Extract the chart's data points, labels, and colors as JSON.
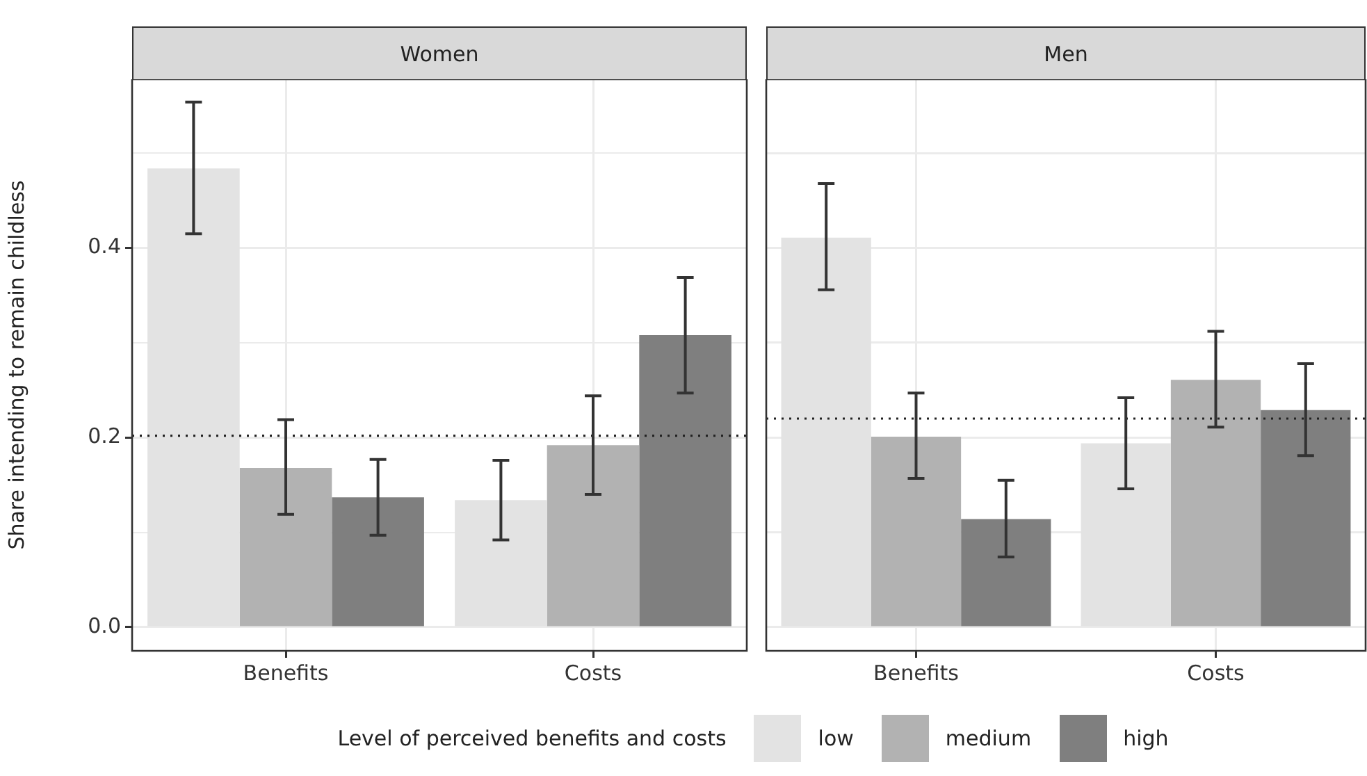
{
  "chart_data": [
    {
      "type": "bar",
      "title": "Women",
      "ylabel": "Share intending to remain childless",
      "legend_title": "Level of perceived benefits and costs",
      "legend": "bottom",
      "grid": true,
      "categories": [
        "Benefits",
        "Costs"
      ],
      "series": [
        {
          "name": "low",
          "color": "#e3e3e3",
          "values": [
            0.484,
            0.134
          ],
          "errors": [
            [
              0.415,
              0.554
            ],
            [
              0.092,
              0.176
            ]
          ]
        },
        {
          "name": "medium",
          "color": "#b2b2b2",
          "values": [
            0.168,
            0.192
          ],
          "errors": [
            [
              0.119,
              0.219
            ],
            [
              0.14,
              0.244
            ]
          ]
        },
        {
          "name": "high",
          "color": "#7f7f7f",
          "values": [
            0.137,
            0.308
          ],
          "errors": [
            [
              0.097,
              0.177
            ],
            [
              0.247,
              0.369
            ]
          ]
        }
      ],
      "ylim": [
        -0.025,
        0.578
      ],
      "yticks": [
        {
          "value": 0,
          "label": "0.0"
        },
        {
          "value": 0.1,
          "label": null
        },
        {
          "value": 0.2,
          "label": "0.2"
        },
        {
          "value": 0.3,
          "label": null
        },
        {
          "value": 0.4,
          "label": "0.4"
        },
        {
          "value": 0.5,
          "label": null
        }
      ],
      "ref_lines": [
        {
          "axis": "y",
          "value": 0.202,
          "line_style": "dotted"
        }
      ]
    },
    {
      "type": "bar",
      "title": "Men",
      "grid": true,
      "tick_labels": "x",
      "categories": [
        "Benefits",
        "Costs"
      ],
      "series": [
        {
          "color": "#e3e3e3",
          "values": [
            0.411,
            0.194
          ],
          "errors": [
            [
              0.356,
              0.468
            ],
            [
              0.146,
              0.242
            ]
          ]
        },
        {
          "color": "#b2b2b2",
          "values": [
            0.201,
            0.261
          ],
          "errors": [
            [
              0.157,
              0.247
            ],
            [
              0.211,
              0.312
            ]
          ]
        },
        {
          "color": "#7f7f7f",
          "values": [
            0.114,
            0.229
          ],
          "errors": [
            [
              0.074,
              0.155
            ],
            [
              0.181,
              0.278
            ]
          ]
        }
      ],
      "ylim": [
        -0.025,
        0.578
      ],
      "yticks": [
        0,
        0.1,
        0.2,
        0.3,
        0.4,
        0.5
      ],
      "ref_lines": [
        {
          "axis": "y",
          "value": 0.22,
          "line_style": "dotted"
        }
      ]
    }
  ]
}
